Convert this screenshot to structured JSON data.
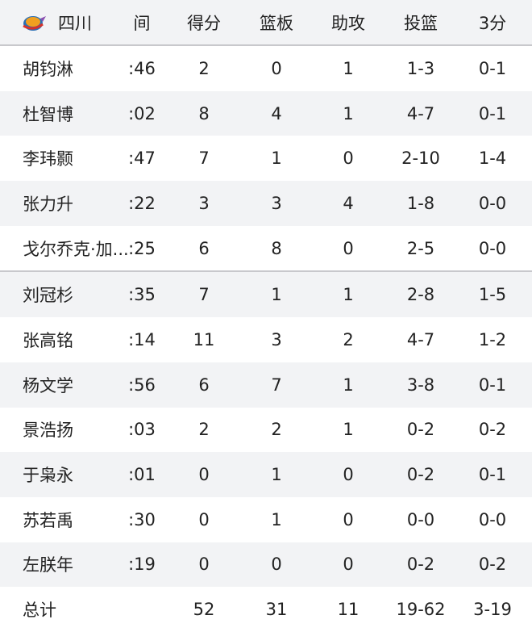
{
  "header": {
    "team": "四川",
    "columns": [
      "间",
      "得分",
      "篮板",
      "助攻",
      "投篮",
      "3分"
    ],
    "logo": "team-logo"
  },
  "rows": [
    {
      "name": "胡钧淋",
      "time": ":46",
      "pts": "2",
      "reb": "0",
      "ast": "1",
      "fg": "1-3",
      "tp": "0-1"
    },
    {
      "name": "杜智博",
      "time": ":02",
      "pts": "8",
      "reb": "4",
      "ast": "1",
      "fg": "4-7",
      "tp": "0-1"
    },
    {
      "name": "李玮颢",
      "time": ":47",
      "pts": "7",
      "reb": "1",
      "ast": "0",
      "fg": "2-10",
      "tp": "1-4"
    },
    {
      "name": "张力升",
      "time": ":22",
      "pts": "3",
      "reb": "3",
      "ast": "4",
      "fg": "1-8",
      "tp": "0-0"
    },
    {
      "name": "戈尔乔克·加...",
      "time": ":25",
      "pts": "6",
      "reb": "8",
      "ast": "0",
      "fg": "2-5",
      "tp": "0-0"
    },
    {
      "name": "刘冠杉",
      "time": ":35",
      "pts": "7",
      "reb": "1",
      "ast": "1",
      "fg": "2-8",
      "tp": "1-5"
    },
    {
      "name": "张高铭",
      "time": ":14",
      "pts": "11",
      "reb": "3",
      "ast": "2",
      "fg": "4-7",
      "tp": "1-2"
    },
    {
      "name": "杨文学",
      "time": ":56",
      "pts": "6",
      "reb": "7",
      "ast": "1",
      "fg": "3-8",
      "tp": "0-1"
    },
    {
      "name": "景浩扬",
      "time": ":03",
      "pts": "2",
      "reb": "2",
      "ast": "1",
      "fg": "0-2",
      "tp": "0-2"
    },
    {
      "name": "于枭永",
      "time": ":01",
      "pts": "0",
      "reb": "1",
      "ast": "0",
      "fg": "0-2",
      "tp": "0-1"
    },
    {
      "name": "苏若禹",
      "time": ":30",
      "pts": "0",
      "reb": "1",
      "ast": "0",
      "fg": "0-0",
      "tp": "0-0"
    },
    {
      "name": "左朕年",
      "time": ":19",
      "pts": "0",
      "reb": "0",
      "ast": "0",
      "fg": "0-2",
      "tp": "0-2"
    }
  ],
  "total": {
    "name": "总计",
    "time": "",
    "pts": "52",
    "reb": "31",
    "ast": "11",
    "fg": "19-62",
    "tp": "3-19"
  }
}
